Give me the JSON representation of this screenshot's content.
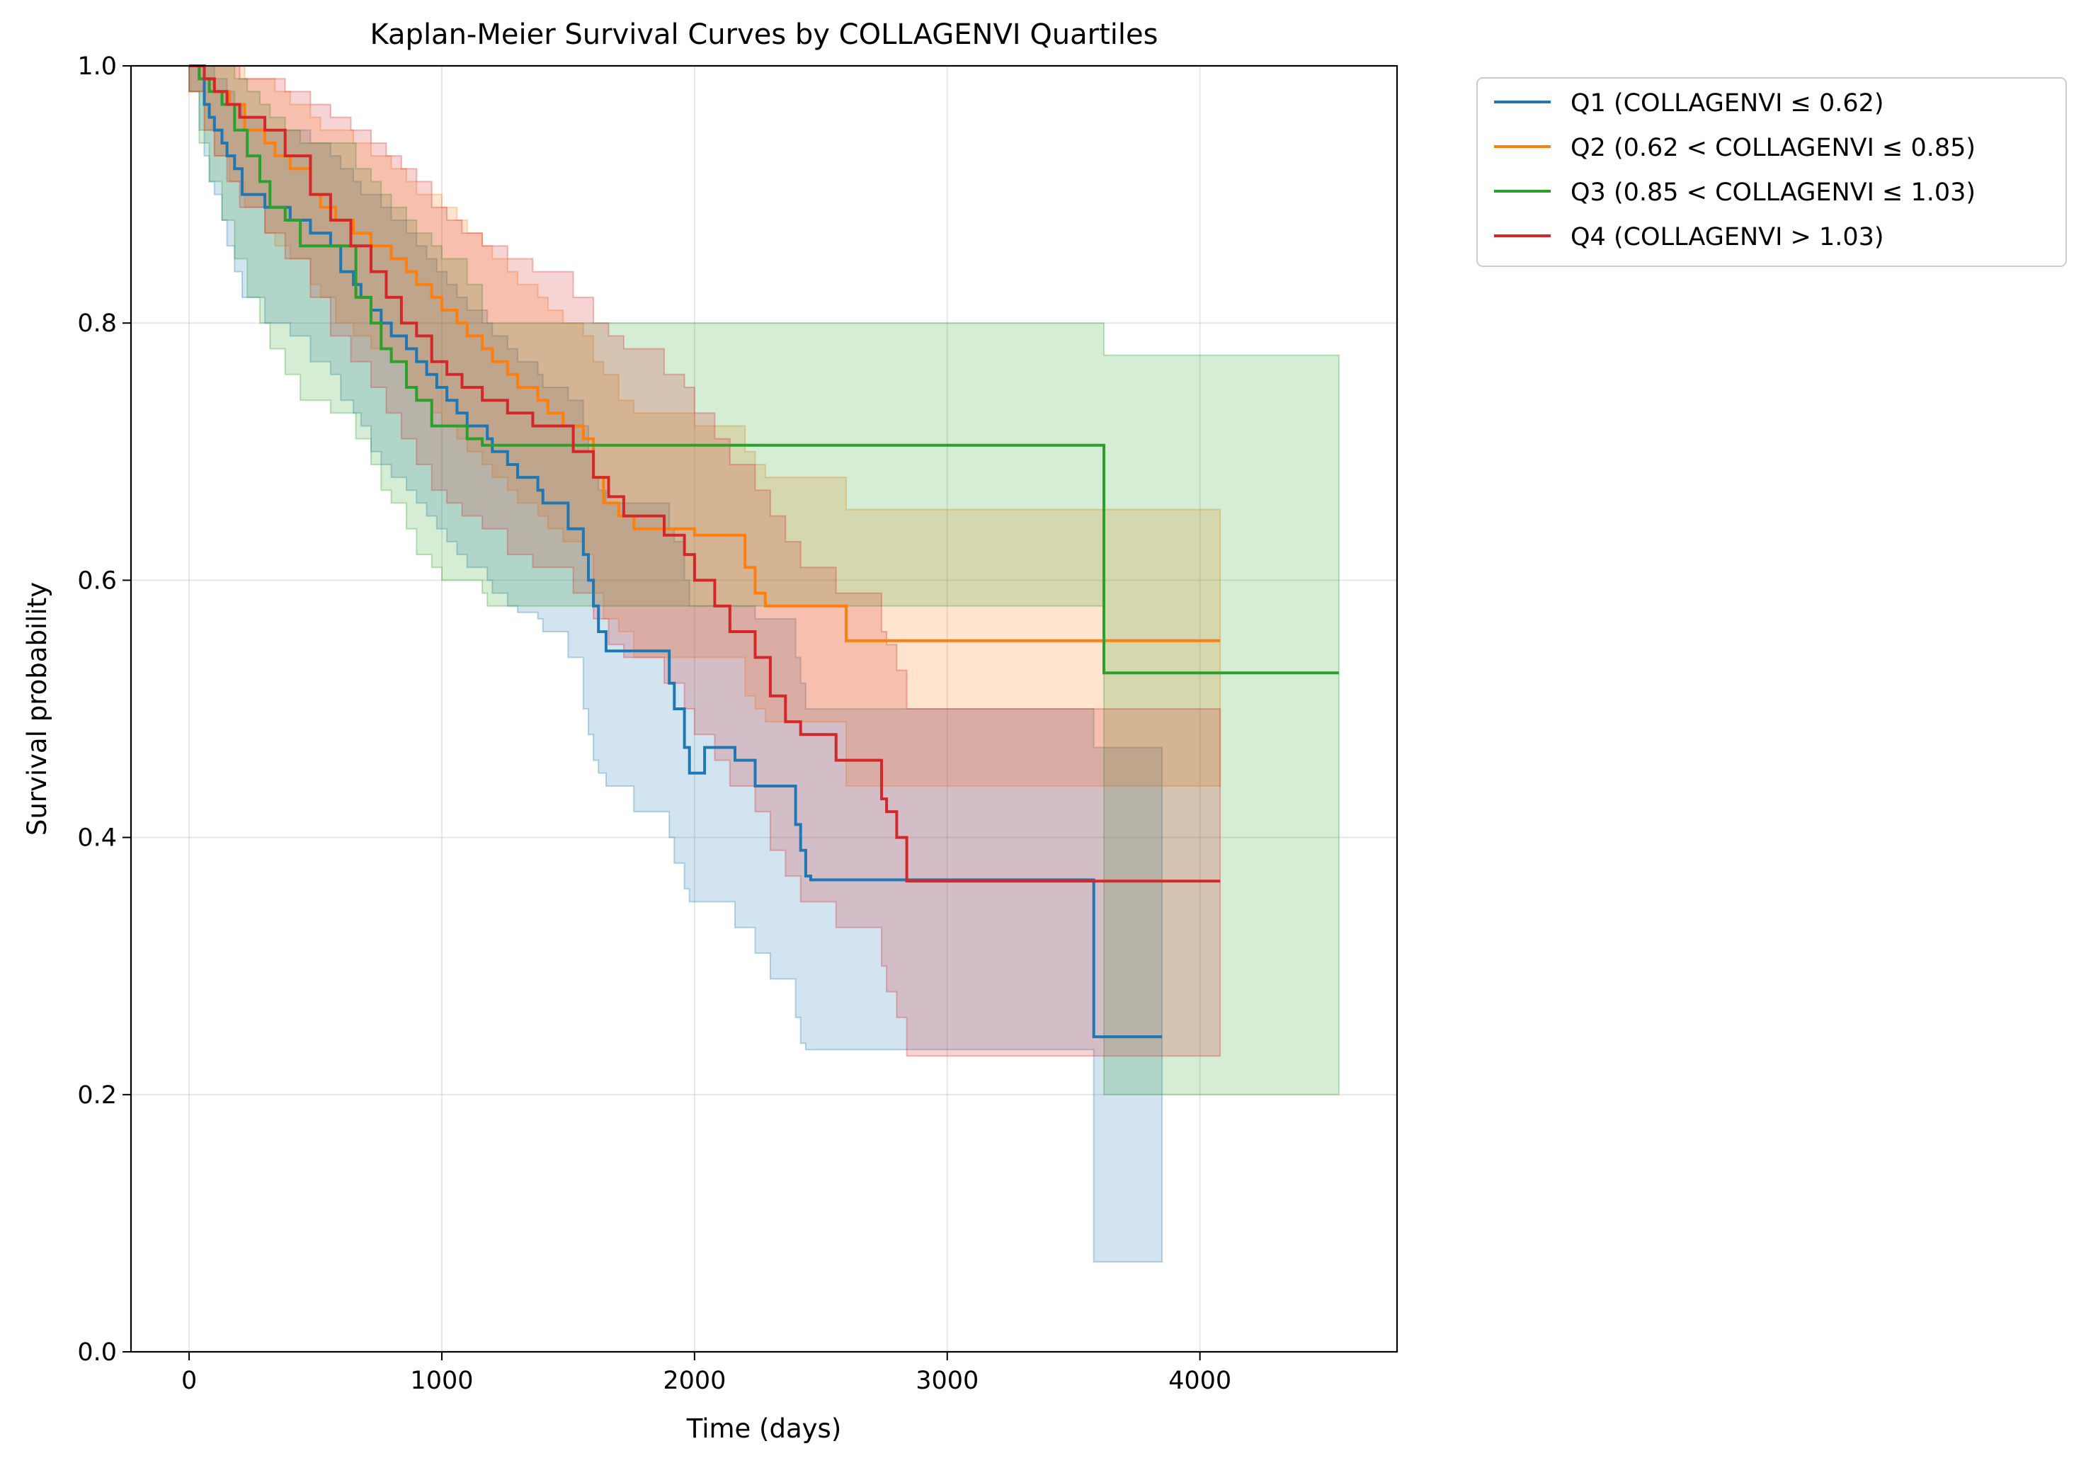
{
  "chart_data": {
    "type": "line",
    "title": "Kaplan-Meier Survival Curves by COLLAGENVI Quartiles",
    "xlabel": "Time (days)",
    "ylabel": "Survival probability",
    "xlim": [
      -230,
      4780
    ],
    "ylim": [
      0,
      1.0
    ],
    "xticks": [
      0,
      1000,
      2000,
      3000,
      4000
    ],
    "yticks": [
      0.0,
      0.2,
      0.4,
      0.6,
      0.8,
      1.0
    ],
    "xtick_labels": [
      "0",
      "1000",
      "2000",
      "3000",
      "4000"
    ],
    "ytick_labels": [
      "0.0",
      "0.2",
      "0.4",
      "0.6",
      "0.8",
      "1.0"
    ],
    "grid": true,
    "legend_position": "outside-top-right",
    "series": [
      {
        "name": "Q1 (COLLAGENVI ≤ 0.62)",
        "color": "#1f77b4",
        "x": [
          0,
          40,
          60,
          80,
          100,
          130,
          150,
          180,
          210,
          300,
          400,
          480,
          560,
          600,
          650,
          680,
          720,
          760,
          800,
          860,
          900,
          940,
          980,
          1020,
          1060,
          1100,
          1180,
          1200,
          1260,
          1300,
          1380,
          1400,
          1500,
          1560,
          1580,
          1600,
          1620,
          1650,
          1760,
          1900,
          1920,
          1960,
          1980,
          2040,
          2160,
          2240,
          2300,
          2400,
          2420,
          2440,
          2460,
          3580,
          3850
        ],
        "y": [
          1.0,
          0.99,
          0.97,
          0.96,
          0.95,
          0.94,
          0.93,
          0.92,
          0.9,
          0.89,
          0.88,
          0.87,
          0.86,
          0.84,
          0.83,
          0.82,
          0.81,
          0.8,
          0.79,
          0.78,
          0.77,
          0.76,
          0.75,
          0.74,
          0.73,
          0.72,
          0.71,
          0.7,
          0.69,
          0.68,
          0.67,
          0.66,
          0.64,
          0.62,
          0.6,
          0.58,
          0.56,
          0.545,
          0.545,
          0.52,
          0.5,
          0.47,
          0.45,
          0.47,
          0.46,
          0.44,
          0.44,
          0.41,
          0.39,
          0.37,
          0.367,
          0.245,
          0.245
        ],
        "ci_lower": [
          0.98,
          0.95,
          0.93,
          0.91,
          0.9,
          0.88,
          0.86,
          0.84,
          0.82,
          0.8,
          0.79,
          0.77,
          0.76,
          0.74,
          0.73,
          0.72,
          0.7,
          0.69,
          0.68,
          0.67,
          0.66,
          0.65,
          0.64,
          0.63,
          0.62,
          0.61,
          0.6,
          0.59,
          0.58,
          0.575,
          0.57,
          0.56,
          0.54,
          0.5,
          0.48,
          0.46,
          0.45,
          0.44,
          0.42,
          0.4,
          0.38,
          0.36,
          0.35,
          0.35,
          0.33,
          0.31,
          0.29,
          0.26,
          0.24,
          0.235,
          0.235,
          0.07,
          0.07
        ],
        "ci_upper": [
          1.0,
          1.0,
          1.0,
          1.0,
          0.99,
          0.99,
          0.98,
          0.97,
          0.96,
          0.95,
          0.95,
          0.94,
          0.93,
          0.92,
          0.91,
          0.9,
          0.9,
          0.89,
          0.88,
          0.87,
          0.86,
          0.85,
          0.84,
          0.83,
          0.82,
          0.81,
          0.8,
          0.79,
          0.78,
          0.77,
          0.76,
          0.75,
          0.74,
          0.72,
          0.7,
          0.68,
          0.67,
          0.66,
          0.66,
          0.64,
          0.63,
          0.6,
          0.58,
          0.58,
          0.58,
          0.57,
          0.57,
          0.54,
          0.52,
          0.5,
          0.5,
          0.47,
          0.47
        ]
      },
      {
        "name": "Q2 (0.62 < COLLAGENVI ≤ 0.85)",
        "color": "#ff7f0e",
        "x": [
          0,
          60,
          100,
          160,
          220,
          300,
          340,
          400,
          480,
          520,
          580,
          650,
          720,
          800,
          860,
          900,
          960,
          1000,
          1060,
          1100,
          1160,
          1200,
          1260,
          1300,
          1380,
          1420,
          1480,
          1560,
          1600,
          1640,
          1700,
          1760,
          2000,
          2200,
          2240,
          2280,
          2600,
          4080
        ],
        "y": [
          1.0,
          0.99,
          0.98,
          0.97,
          0.95,
          0.94,
          0.93,
          0.92,
          0.9,
          0.89,
          0.88,
          0.87,
          0.86,
          0.85,
          0.84,
          0.83,
          0.82,
          0.81,
          0.8,
          0.79,
          0.78,
          0.77,
          0.76,
          0.75,
          0.74,
          0.73,
          0.72,
          0.71,
          0.68,
          0.66,
          0.65,
          0.64,
          0.635,
          0.61,
          0.59,
          0.58,
          0.553,
          0.553
        ],
        "ci_lower": [
          0.98,
          0.95,
          0.93,
          0.91,
          0.89,
          0.87,
          0.86,
          0.85,
          0.83,
          0.82,
          0.8,
          0.79,
          0.78,
          0.77,
          0.75,
          0.74,
          0.73,
          0.72,
          0.71,
          0.7,
          0.69,
          0.68,
          0.67,
          0.66,
          0.65,
          0.64,
          0.63,
          0.62,
          0.59,
          0.57,
          0.56,
          0.54,
          0.54,
          0.51,
          0.5,
          0.49,
          0.44,
          0.44
        ],
        "ci_upper": [
          1.0,
          1.0,
          1.0,
          1.0,
          0.99,
          0.99,
          0.98,
          0.97,
          0.96,
          0.95,
          0.95,
          0.94,
          0.93,
          0.92,
          0.91,
          0.9,
          0.9,
          0.89,
          0.88,
          0.87,
          0.86,
          0.85,
          0.84,
          0.83,
          0.82,
          0.81,
          0.8,
          0.79,
          0.77,
          0.76,
          0.74,
          0.73,
          0.72,
          0.7,
          0.69,
          0.68,
          0.655,
          0.655
        ]
      },
      {
        "name": "Q3 (0.85 < COLLAGENVI ≤ 1.03)",
        "color": "#2ca02c",
        "x": [
          0,
          40,
          80,
          130,
          180,
          230,
          280,
          320,
          380,
          440,
          560,
          660,
          720,
          760,
          800,
          860,
          900,
          960,
          1000,
          1100,
          1160,
          1180,
          3620,
          4550
        ],
        "y": [
          1.0,
          0.99,
          0.98,
          0.97,
          0.95,
          0.93,
          0.91,
          0.89,
          0.88,
          0.86,
          0.86,
          0.82,
          0.8,
          0.78,
          0.77,
          0.75,
          0.74,
          0.72,
          0.72,
          0.71,
          0.705,
          0.705,
          0.528,
          0.528
        ],
        "ci_lower": [
          0.98,
          0.94,
          0.91,
          0.88,
          0.85,
          0.82,
          0.8,
          0.78,
          0.76,
          0.74,
          0.73,
          0.71,
          0.69,
          0.67,
          0.66,
          0.64,
          0.62,
          0.61,
          0.6,
          0.6,
          0.59,
          0.58,
          0.2,
          0.2
        ],
        "ci_upper": [
          1.0,
          1.0,
          1.0,
          1.0,
          0.99,
          0.98,
          0.97,
          0.96,
          0.95,
          0.94,
          0.94,
          0.92,
          0.91,
          0.9,
          0.89,
          0.88,
          0.87,
          0.86,
          0.85,
          0.83,
          0.8,
          0.8,
          0.775,
          0.775
        ]
      },
      {
        "name": "Q4 (COLLAGENVI > 1.03)",
        "color": "#d62728",
        "x": [
          0,
          60,
          100,
          150,
          200,
          300,
          380,
          480,
          560,
          640,
          720,
          780,
          840,
          900,
          960,
          1020,
          1080,
          1160,
          1260,
          1360,
          1520,
          1600,
          1660,
          1720,
          1880,
          1960,
          2000,
          2080,
          2140,
          2240,
          2300,
          2360,
          2420,
          2560,
          2740,
          2760,
          2800,
          2840,
          4080
        ],
        "y": [
          1.0,
          0.99,
          0.98,
          0.97,
          0.96,
          0.95,
          0.93,
          0.9,
          0.88,
          0.86,
          0.84,
          0.82,
          0.8,
          0.79,
          0.77,
          0.76,
          0.75,
          0.74,
          0.73,
          0.72,
          0.7,
          0.68,
          0.665,
          0.65,
          0.635,
          0.62,
          0.6,
          0.58,
          0.56,
          0.54,
          0.51,
          0.49,
          0.48,
          0.46,
          0.43,
          0.42,
          0.4,
          0.366,
          0.366
        ],
        "ci_lower": [
          0.98,
          0.95,
          0.93,
          0.91,
          0.89,
          0.87,
          0.85,
          0.82,
          0.79,
          0.77,
          0.75,
          0.73,
          0.71,
          0.69,
          0.67,
          0.66,
          0.65,
          0.64,
          0.62,
          0.61,
          0.59,
          0.57,
          0.55,
          0.54,
          0.52,
          0.5,
          0.48,
          0.46,
          0.44,
          0.42,
          0.39,
          0.37,
          0.35,
          0.33,
          0.3,
          0.28,
          0.26,
          0.23,
          0.23
        ],
        "ci_upper": [
          1.0,
          1.0,
          1.0,
          1.0,
          0.99,
          0.99,
          0.98,
          0.97,
          0.96,
          0.95,
          0.94,
          0.93,
          0.92,
          0.91,
          0.89,
          0.88,
          0.87,
          0.86,
          0.85,
          0.84,
          0.82,
          0.8,
          0.79,
          0.78,
          0.76,
          0.75,
          0.73,
          0.71,
          0.69,
          0.67,
          0.65,
          0.63,
          0.61,
          0.59,
          0.56,
          0.55,
          0.53,
          0.5,
          0.5
        ]
      }
    ]
  }
}
